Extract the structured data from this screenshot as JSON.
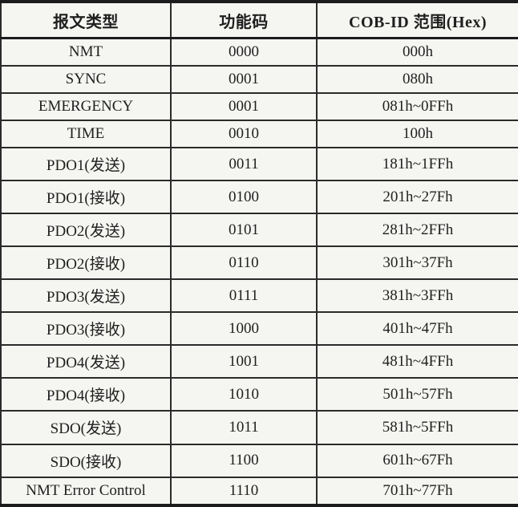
{
  "table": {
    "title": "CANopen message type / COB-ID table",
    "colors": {
      "text": "#1f1f1f",
      "border": "#2b2b2b",
      "background": "#f5f5f2"
    },
    "columns": [
      "报文类型",
      "功能码",
      "COB-ID 范围(Hex)"
    ],
    "rows": [
      [
        "NMT",
        "0000",
        "000h"
      ],
      [
        "SYNC",
        "0001",
        "080h"
      ],
      [
        "EMERGENCY",
        "0001",
        "081h~0FFh"
      ],
      [
        "TIME",
        "0010",
        "100h"
      ],
      [
        "PDO1(发送)",
        "0011",
        "181h~1FFh"
      ],
      [
        "PDO1(接收)",
        "0100",
        "201h~27Fh"
      ],
      [
        "PDO2(发送)",
        "0101",
        "281h~2FFh"
      ],
      [
        "PDO2(接收)",
        "0110",
        "301h~37Fh"
      ],
      [
        "PDO3(发送)",
        "0111",
        "381h~3FFh"
      ],
      [
        "PDO3(接收)",
        "1000",
        "401h~47Fh"
      ],
      [
        "PDO4(发送)",
        "1001",
        "481h~4FFh"
      ],
      [
        "PDO4(接收)",
        "1010",
        "501h~57Fh"
      ],
      [
        "SDO(发送)",
        "1011",
        "581h~5FFh"
      ],
      [
        "SDO(接收)",
        "1100",
        "601h~67Fh"
      ],
      [
        "NMT Error Control",
        "1110",
        "701h~77Fh"
      ]
    ]
  }
}
